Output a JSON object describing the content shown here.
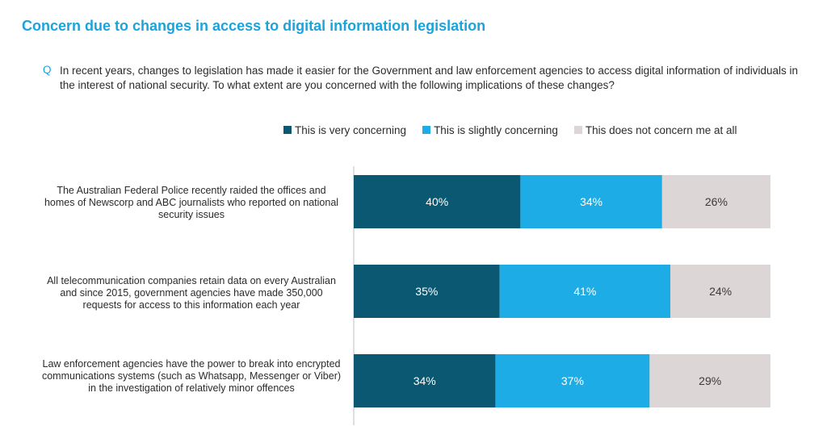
{
  "title": "Concern due to changes in access to digital information legislation",
  "question_marker": "Q",
  "question": "In recent years, changes to legislation has made it easier for the Government and law enforcement agencies to access digital information of individuals in the interest of national security. To what extent are you concerned with the following implications of these changes?",
  "colors": {
    "title": "#1ba3dc",
    "very": "#0b5873",
    "slightly": "#1dace6",
    "not": "#dcd6d6"
  },
  "chart_data": {
    "type": "bar",
    "orientation": "horizontal",
    "stacked": true,
    "xlim": [
      0,
      100
    ],
    "unit": "%",
    "legend_position": "top",
    "categories": [
      "The Australian Federal Police recently raided the offices and homes of Newscorp and ABC journalists who reported on national security issues",
      "All telecommunication companies retain data on every Australian and since 2015, government agencies have made 350,000 requests for access to this information each year",
      "Law enforcement agencies have the power to break into encrypted communications systems (such as Whatsapp, Messenger or Viber) in the investigation of relatively minor offences"
    ],
    "series": [
      {
        "name": "This is very concerning",
        "color": "#0b5873",
        "label_color": "#ffffff",
        "values": [
          40,
          35,
          34
        ],
        "labels": [
          "40%",
          "35%",
          "34%"
        ]
      },
      {
        "name": "This is slightly concerning",
        "color": "#1dace6",
        "label_color": "#ffffff",
        "values": [
          34,
          41,
          37
        ],
        "labels": [
          "34%",
          "41%",
          "37%"
        ]
      },
      {
        "name": "This does not concern me at all",
        "color": "#dcd6d6",
        "label_color": "#3a3a3a",
        "values": [
          26,
          24,
          29
        ],
        "labels": [
          "26%",
          "24%",
          "29%"
        ]
      }
    ]
  }
}
